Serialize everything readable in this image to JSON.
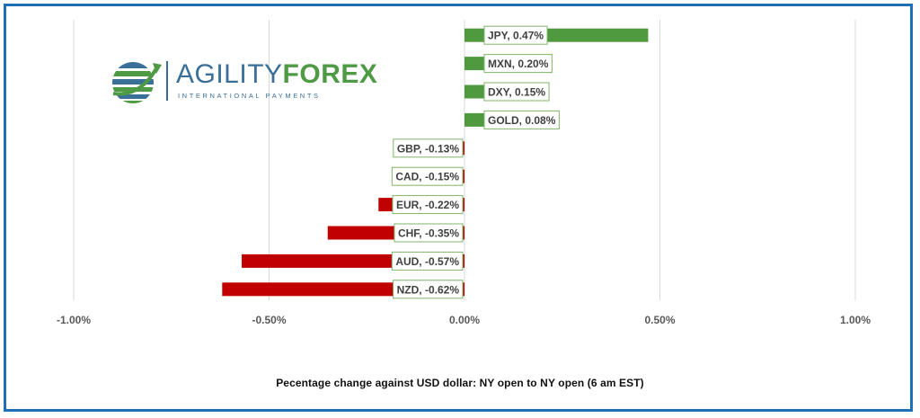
{
  "logo": {
    "name_part1": "AGILITY",
    "name_part2": "FOREX",
    "tagline": "INTERNATIONAL PAYMENTS",
    "icon": "globe-swoosh-icon"
  },
  "colors": {
    "positive": "#4f9a3f",
    "negative": "#c00000",
    "label_border": "#7fb56a",
    "grid": "#d9d9d9",
    "axis_text": "#595959",
    "frame": "#1f6fb5"
  },
  "chart_data": {
    "type": "bar",
    "orientation": "horizontal",
    "xlabel": "Pecentage change against USD dollar:  NY open to NY open  (6 am EST)",
    "ylabel": "",
    "title": "",
    "xlim": [
      -1.0,
      1.0
    ],
    "x_ticks": [
      "-1.00%",
      "-0.50%",
      "0.00%",
      "0.50%",
      "1.00%"
    ],
    "x_tick_values": [
      -1.0,
      -0.5,
      0.0,
      0.5,
      1.0
    ],
    "grid": "vertical",
    "data_labels": true,
    "categories": [
      "JPY",
      "MXN",
      "DXY",
      "GOLD",
      "GBP",
      "CAD",
      "EUR",
      "CHF",
      "AUD",
      "NZD"
    ],
    "values": [
      0.47,
      0.2,
      0.15,
      0.08,
      -0.13,
      -0.15,
      -0.22,
      -0.35,
      -0.57,
      -0.62
    ],
    "labels": [
      "JPY, 0.47%",
      "MXN, 0.20%",
      "DXY, 0.15%",
      "GOLD, 0.08%",
      "GBP, -0.13%",
      "CAD, -0.15%",
      "EUR, -0.22%",
      "CHF, -0.35%",
      "AUD, -0.57%",
      "NZD, -0.62%"
    ]
  }
}
